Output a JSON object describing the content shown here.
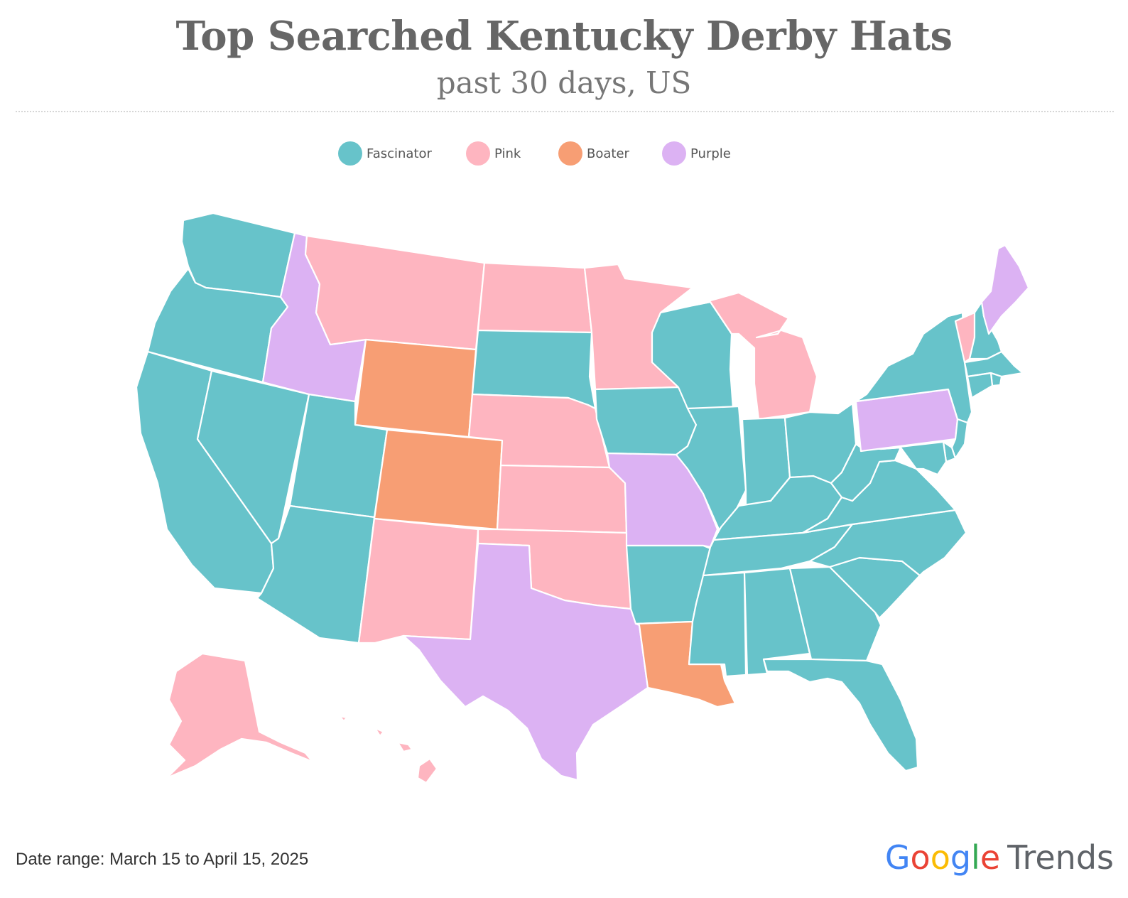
{
  "title": "Top Searched Kentucky Derby Hats",
  "subtitle": "past 30 days, US",
  "legend": [
    {
      "label": "Fascinator",
      "color": "#67C3CA"
    },
    {
      "label": "Pink",
      "color": "#FEB5C0"
    },
    {
      "label": "Boater",
      "color": "#F79E74"
    },
    {
      "label": "Purple",
      "color": "#DCB2F3"
    }
  ],
  "footer": {
    "date_range": "Date range: March 15 to April 15, 2025",
    "logo_google": "Google",
    "logo_trends": "Trends"
  },
  "map_data": {
    "categories": [
      "Fascinator",
      "Pink",
      "Boater",
      "Purple"
    ],
    "states": {
      "Washington": "Fascinator",
      "Oregon": "Fascinator",
      "California": "Fascinator",
      "Nevada": "Fascinator",
      "Utah": "Fascinator",
      "Arizona": "Fascinator",
      "Idaho": "Purple",
      "Montana": "Pink",
      "Wyoming": "Boater",
      "Colorado": "Boater",
      "New Mexico": "Pink",
      "North Dakota": "Pink",
      "South Dakota": "Fascinator",
      "Nebraska": "Pink",
      "Kansas": "Pink",
      "Oklahoma": "Pink",
      "Texas": "Purple",
      "Minnesota": "Pink",
      "Iowa": "Fascinator",
      "Missouri": "Purple",
      "Arkansas": "Fascinator",
      "Louisiana": "Boater",
      "Wisconsin": "Fascinator",
      "Illinois": "Fascinator",
      "Michigan": "Pink",
      "Indiana": "Fascinator",
      "Ohio": "Fascinator",
      "Kentucky": "Fascinator",
      "Tennessee": "Fascinator",
      "Mississippi": "Fascinator",
      "Alabama": "Fascinator",
      "Georgia": "Fascinator",
      "Florida": "Fascinator",
      "South Carolina": "Fascinator",
      "North Carolina": "Fascinator",
      "Virginia": "Fascinator",
      "West Virginia": "Fascinator",
      "Pennsylvania": "Purple",
      "New York": "Fascinator",
      "Vermont": "Pink",
      "New Hampshire": "Fascinator",
      "Maine": "Purple",
      "Massachusetts": "Fascinator",
      "Rhode Island": "Fascinator",
      "Connecticut": "Fascinator",
      "New Jersey": "Fascinator",
      "Delaware": "Fascinator",
      "Maryland": "Fascinator",
      "Alaska": "Pink",
      "Hawaii": "Pink"
    }
  }
}
